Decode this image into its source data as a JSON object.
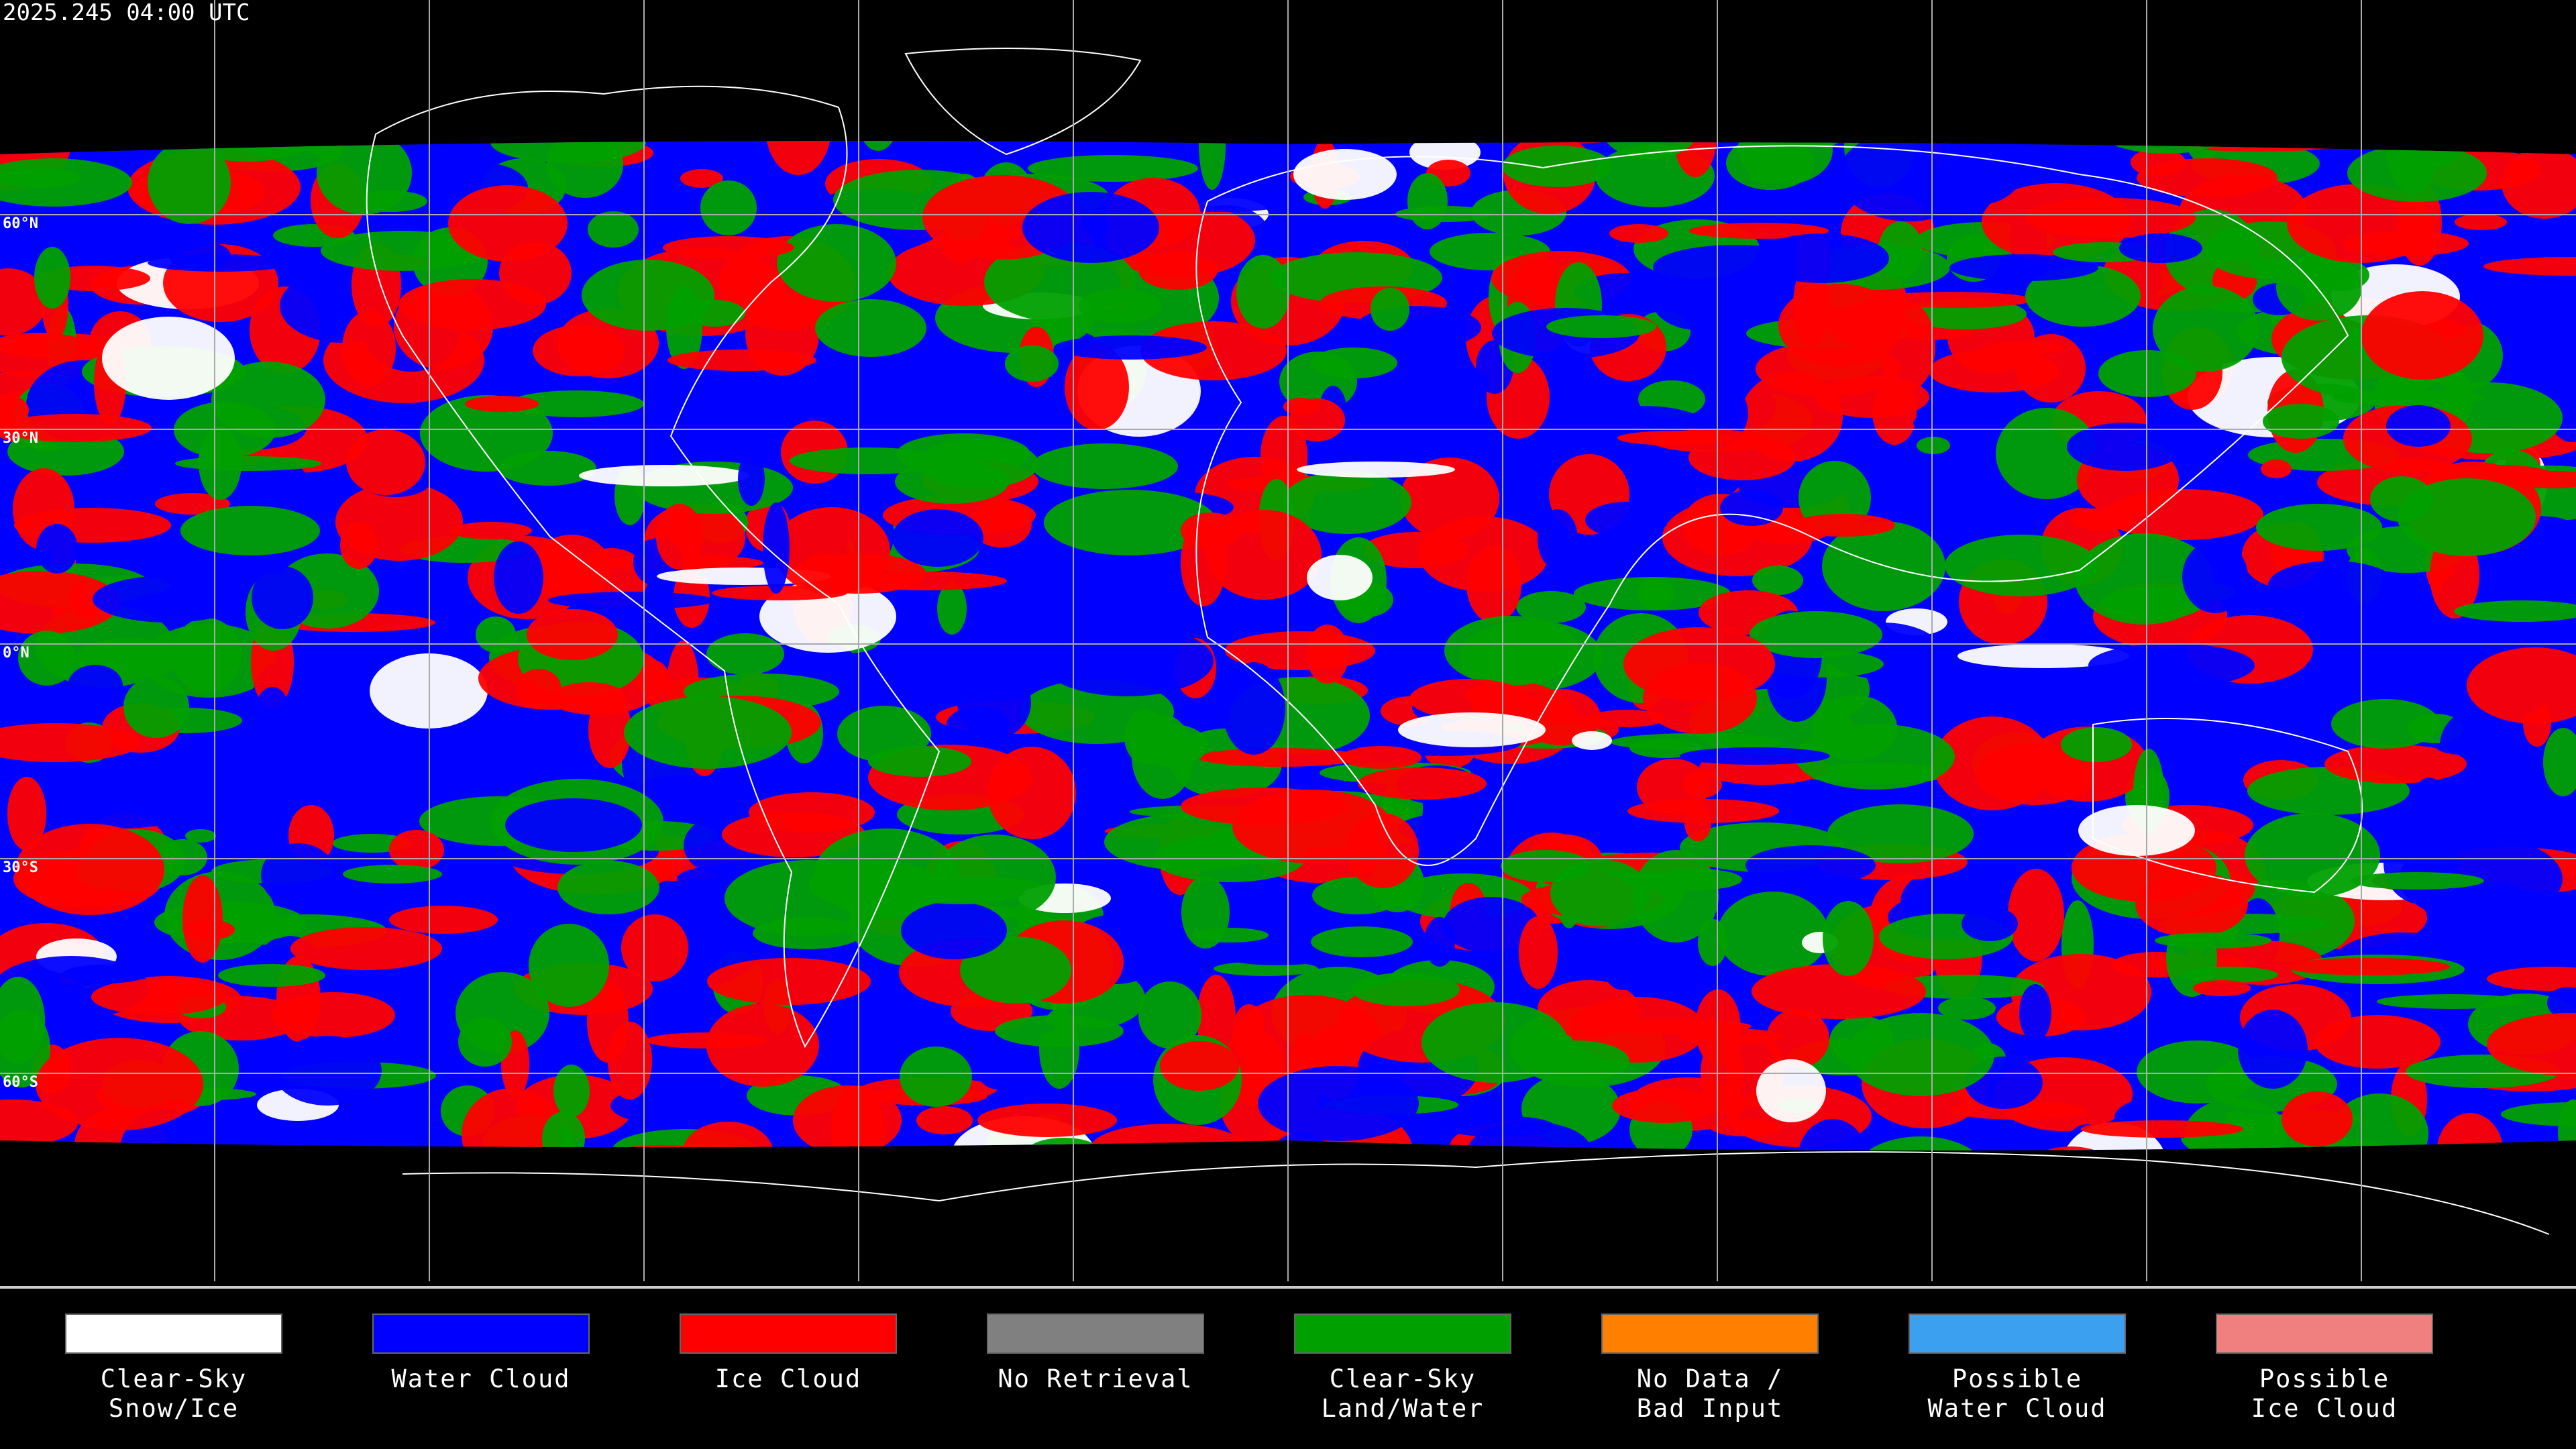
{
  "title": "2025.245 04:00 UTC",
  "latitude_lines": [
    {
      "value": 60,
      "label": "60°N"
    },
    {
      "value": 30,
      "label": "30°N"
    },
    {
      "value": 0,
      "label": "0°N"
    },
    {
      "value": -30,
      "label": "30°S"
    },
    {
      "value": -60,
      "label": "60°S"
    }
  ],
  "legend": [
    {
      "color": "#ffffff",
      "label": [
        "Clear-Sky",
        "Snow/Ice"
      ]
    },
    {
      "color": "#0000ff",
      "label": [
        "Water Cloud"
      ]
    },
    {
      "color": "#ff0000",
      "label": [
        "Ice Cloud"
      ]
    },
    {
      "color": "#808080",
      "label": [
        "No Retrieval"
      ]
    },
    {
      "color": "#00a000",
      "label": [
        "Clear-Sky",
        "Land/Water"
      ]
    },
    {
      "color": "#ff8000",
      "label": [
        "No Data /",
        "Bad Input"
      ]
    },
    {
      "color": "#3ca0f0",
      "label": [
        "Possible",
        "Water Cloud"
      ]
    },
    {
      "color": "#f08080",
      "label": [
        "Possible",
        "Ice Cloud"
      ]
    }
  ]
}
